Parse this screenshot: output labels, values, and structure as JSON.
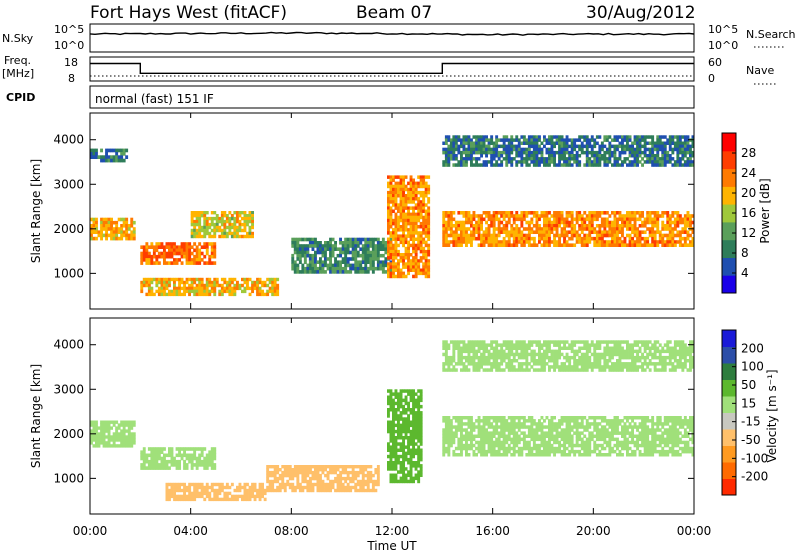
{
  "header": {
    "station": "Fort Hays West (fitACF)",
    "beam": "Beam 07",
    "date": "30/Aug/2012"
  },
  "top_panel": {
    "nsky_label": "N.Sky",
    "nsearch_label": "N.Search",
    "nsky_ticks": [
      "10^5",
      "10^0"
    ],
    "nsearch_ticks": [
      "10^5",
      "10^0"
    ],
    "freq_label_line1": "Freq.",
    "freq_label_line2": "[MHz]",
    "freq_ticks": [
      "18",
      "8"
    ],
    "nave_label": "Nave",
    "nave_ticks": [
      "60",
      "0"
    ],
    "cpid_label": "CPID",
    "cpid_text": "normal (fast) 151 IF"
  },
  "x_axis": {
    "label": "Time UT",
    "ticks": [
      "00:00",
      "04:00",
      "08:00",
      "12:00",
      "16:00",
      "20:00",
      "00:00"
    ]
  },
  "power_panel": {
    "ylabel": "Slant Range [km]",
    "yticks": [
      "1000",
      "2000",
      "3000",
      "4000"
    ],
    "cbar_label": "Power [dB]",
    "cbar_ticks": [
      "4",
      "8",
      "12",
      "16",
      "20",
      "24",
      "28"
    ],
    "colors": [
      "#1a00e8",
      "#1f4fb0",
      "#2e7d5a",
      "#5a9f5a",
      "#9fc83a",
      "#ffb400",
      "#ff7a00",
      "#ff3d00",
      "#ff0000"
    ]
  },
  "velocity_panel": {
    "ylabel": "Slant Range [km]",
    "yticks": [
      "1000",
      "2000",
      "3000",
      "4000"
    ],
    "cbar_label": "Velocity [m s⁻¹]",
    "cbar_ticks": [
      "200",
      "100",
      "50",
      "15",
      "-15",
      "-50",
      "-100",
      "-200"
    ],
    "colors": [
      "#1a1ad8",
      "#2c4ea8",
      "#2e7d3e",
      "#5cb82e",
      "#a0e07a",
      "#c8c8c0",
      "#ffc06a",
      "#ff9a20",
      "#ff6a00",
      "#ff2a00"
    ]
  },
  "chart_data": [
    {
      "type": "line",
      "title": "N.Sky / N.Search",
      "x": [
        "00:00",
        "04:00",
        "08:00",
        "12:00",
        "16:00",
        "20:00",
        "00:00"
      ],
      "series": [
        {
          "name": "N.Sky",
          "values": [
            3.2,
            3.3,
            3.4,
            3.3,
            3.1,
            3.2,
            3.2
          ]
        }
      ],
      "ylim": [
        0,
        5
      ]
    },
    {
      "type": "line",
      "title": "Freq. [MHz]",
      "x_hours": [
        0,
        2,
        2,
        14,
        14,
        24
      ],
      "series": [
        {
          "name": "Freq.",
          "values": [
            15.3,
            15.3,
            11.2,
            11.2,
            15.3,
            15.3
          ]
        },
        {
          "name": "Nave",
          "values": [
            8,
            8,
            8,
            8,
            8,
            8
          ]
        }
      ],
      "ylim": [
        8,
        18
      ]
    },
    {
      "type": "heatmap",
      "title": "Power [dB]",
      "xlabel": "Time UT",
      "ylabel": "Slant Range [km]",
      "x_hours": [
        0,
        24
      ],
      "ylim": [
        200,
        4600
      ],
      "colorbar": {
        "label": "Power [dB]",
        "ticks": [
          4,
          8,
          12,
          16,
          20,
          24,
          28
        ]
      },
      "features": [
        {
          "t0": 0.0,
          "t1": 1.8,
          "r0": 1750,
          "r1": 2250,
          "level": 20
        },
        {
          "t0": 0.0,
          "t1": 1.5,
          "r0": 3500,
          "r1": 3800,
          "level": 8
        },
        {
          "t0": 2.0,
          "t1": 5.0,
          "r0": 1200,
          "r1": 1700,
          "level": 24
        },
        {
          "t0": 2.0,
          "t1": 7.5,
          "r0": 500,
          "r1": 900,
          "level": 20
        },
        {
          "t0": 4.0,
          "t1": 6.5,
          "r0": 1800,
          "r1": 2400,
          "level": 18
        },
        {
          "t0": 8.0,
          "t1": 12.0,
          "r0": 1000,
          "r1": 1800,
          "level": 10
        },
        {
          "t0": 11.8,
          "t1": 13.5,
          "r0": 900,
          "r1": 3200,
          "level": 22
        },
        {
          "t0": 14.0,
          "t1": 24.0,
          "r0": 1600,
          "r1": 2400,
          "level": 22
        },
        {
          "t0": 14.0,
          "t1": 24.0,
          "r0": 3400,
          "r1": 4100,
          "level": 8
        }
      ]
    },
    {
      "type": "heatmap",
      "title": "Velocity [m s⁻¹]",
      "xlabel": "Time UT",
      "ylabel": "Slant Range [km]",
      "x_hours": [
        0,
        24
      ],
      "ylim": [
        200,
        4600
      ],
      "colorbar": {
        "label": "Velocity [m s⁻¹]",
        "ticks": [
          200,
          100,
          50,
          15,
          -15,
          -50,
          -100,
          -200
        ]
      },
      "features": [
        {
          "t0": 0.0,
          "t1": 1.8,
          "r0": 1700,
          "r1": 2300,
          "level": 0
        },
        {
          "t0": 2.0,
          "t1": 5.0,
          "r0": 1200,
          "r1": 1700,
          "level": 0
        },
        {
          "t0": 3.0,
          "t1": 7.0,
          "r0": 500,
          "r1": 900,
          "level": -60
        },
        {
          "t0": 7.0,
          "t1": 11.5,
          "r0": 700,
          "r1": 1300,
          "level": -60
        },
        {
          "t0": 11.8,
          "t1": 13.2,
          "r0": 900,
          "r1": 3000,
          "level": 40
        },
        {
          "t0": 14.0,
          "t1": 24.0,
          "r0": 1500,
          "r1": 2400,
          "level": 0
        },
        {
          "t0": 14.0,
          "t1": 24.0,
          "r0": 3400,
          "r1": 4100,
          "level": 0
        }
      ]
    }
  ]
}
